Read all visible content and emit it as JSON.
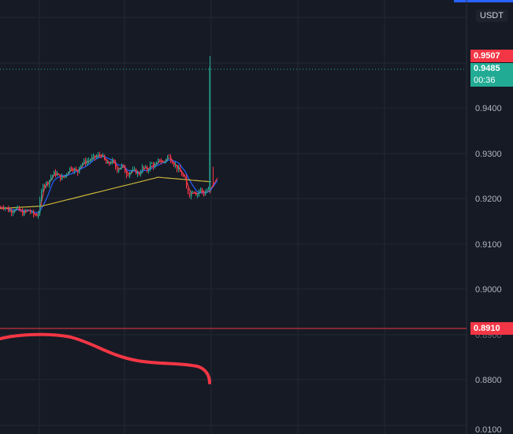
{
  "header": {
    "currency_button": "USDT"
  },
  "price_axis": {
    "ticks": [
      "0.9400",
      "0.9300",
      "0.9200",
      "0.9100",
      "0.9000",
      "0.8800"
    ],
    "bottom_label": "0.0100",
    "hidden_tick": "0.8900"
  },
  "badges": {
    "high": {
      "label": "0.9507",
      "color": "#f23645"
    },
    "last": {
      "price": "0.9485",
      "countdown": "00:36",
      "color": "#22ab94"
    },
    "line": {
      "label": "0.8910",
      "color": "#f23645"
    }
  },
  "colors": {
    "background": "#161a25",
    "up": "#22ab94",
    "down": "#f23645",
    "ma_red": "#f23645",
    "ma_blue": "#2962ff",
    "ma_yellow": "#c9b53a",
    "axis_text": "#b2b5be"
  },
  "chart_data": {
    "type": "candlestick",
    "y_axis_ticks": [
      0.94,
      0.93,
      0.92,
      0.91,
      0.9,
      0.88
    ],
    "last_price": 0.9485,
    "high_marker": 0.9507,
    "horizontal_line": 0.891,
    "spike_high": 0.9515,
    "overlays": [
      "ma-red",
      "ma-blue",
      "ma-yellow"
    ],
    "lower_curve": "red",
    "grid": true
  }
}
